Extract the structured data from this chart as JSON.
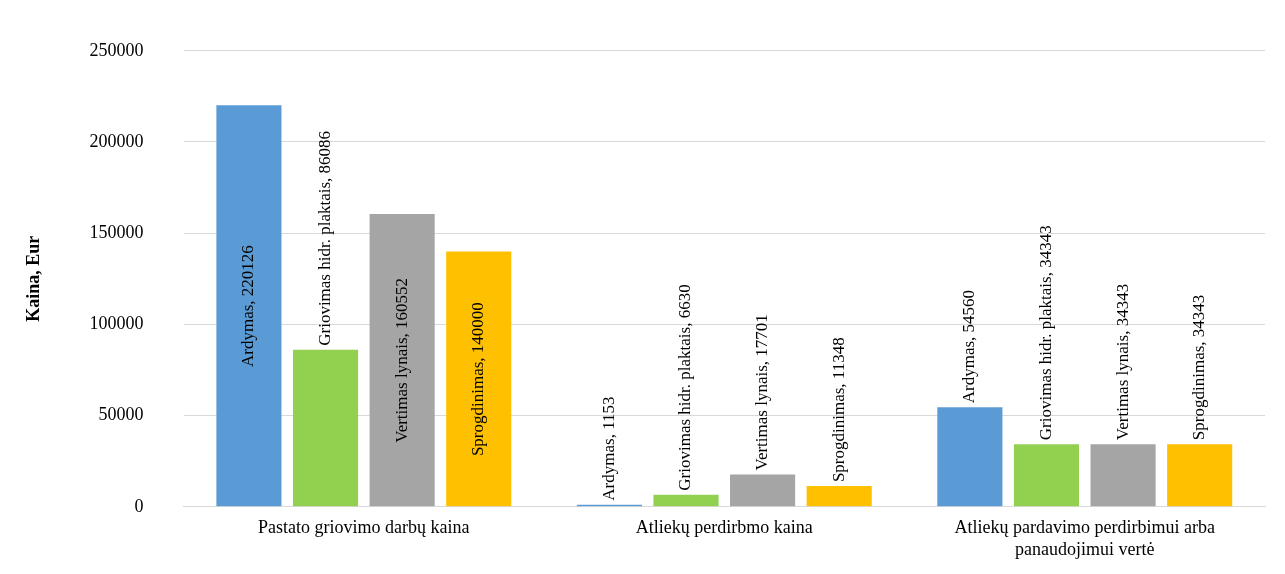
{
  "chart_data": {
    "type": "bar",
    "ylabel": "Kaina, Eur",
    "categories": [
      "Pastato griovimo darbų kaina",
      "Atliekų perdirbmo kaina",
      "Atliekų pardavimo perdirbimui arba panaudojimui vertė"
    ],
    "series": [
      {
        "color": "#5b9bd5",
        "values": [
          220126,
          1153,
          54560
        ],
        "value_labels": [
          "Ardymas, 220126",
          "Ardymas, 1153",
          "Ardymas, 54560"
        ]
      },
      {
        "color": "#92d050",
        "values": [
          86086,
          6630,
          34343
        ],
        "value_labels": [
          "Griovimas hidr. plaktais, 86086",
          "Griovimas hidr. plaktais, 6630",
          "Griovimas hidr. plaktais, 34343"
        ]
      },
      {
        "color": "#a5a5a5",
        "values": [
          160552,
          17701,
          34343
        ],
        "value_labels": [
          "Vertimas lynais, 160552",
          "Vertimas lynais, 17701",
          "Vertimas lynais, 34343"
        ]
      },
      {
        "color": "#ffc000",
        "values": [
          140000,
          11348,
          34343
        ],
        "value_labels": [
          "Sprogdinimas, 140000",
          "Sprogdinimas, 11348",
          "Sprogdinimas, 34343"
        ]
      }
    ],
    "ylim": [
      0,
      250000
    ],
    "yticks": [
      0,
      50000,
      100000,
      150000,
      200000,
      250000
    ],
    "grid": "y",
    "legend": false
  }
}
